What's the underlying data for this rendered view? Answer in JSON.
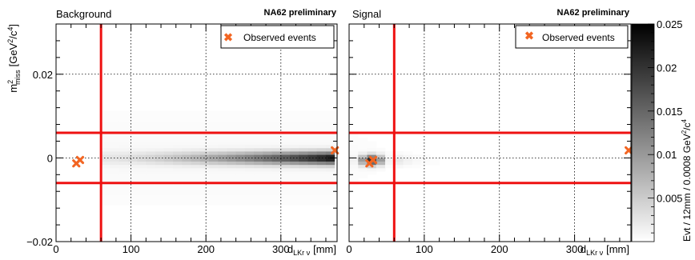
{
  "figure": {
    "panels": [
      "Background",
      "Signal"
    ],
    "preliminary_label": "NA62 preliminary"
  },
  "chart_data": [
    {
      "type": "heatmap",
      "title": "Background",
      "annotation": "NA62 preliminary",
      "xlabel": "d",
      "xlabel_sub": "LKr ν",
      "xlabel_unit": "[mm]",
      "ylabel": "m",
      "ylabel_sup": "2",
      "ylabel_sub": "miss",
      "ylabel_unit_pre": "[GeV",
      "ylabel_unit_sup1": "2",
      "ylabel_unit_mid": "/c",
      "ylabel_unit_sup2": "4",
      "ylabel_unit_post": "]",
      "xlim": [
        0,
        375
      ],
      "ylim": [
        -0.02,
        0.032
      ],
      "xticks": [
        0,
        100,
        200,
        300
      ],
      "xtick_labels": [
        "0",
        "100",
        "200",
        "300"
      ],
      "yticks": [
        -0.02,
        0,
        0.02
      ],
      "ytick_labels": [
        "−0.02",
        "0",
        "0.02"
      ],
      "grid": true,
      "legend": {
        "position": "top-right",
        "entries": [
          "Observed events"
        ]
      },
      "cut_lines": {
        "x": [
          60
        ],
        "y": [
          -0.006,
          0.006
        ]
      },
      "density": {
        "band_y_center": 0.0,
        "band_half_width": 0.0015,
        "x_start": 60,
        "x_end": 375,
        "peak_x": 375,
        "peak_value": 0.024
      },
      "observed_events": [
        {
          "x": 27,
          "y": -0.0013
        },
        {
          "x": 32,
          "y": -0.0005
        },
        {
          "x": 372,
          "y": 0.0018
        }
      ]
    },
    {
      "type": "heatmap",
      "title": "Signal",
      "annotation": "NA62 preliminary",
      "xlabel": "d",
      "xlabel_sub": "LKr ν",
      "xlabel_unit": "[mm]",
      "xlim": [
        0,
        375
      ],
      "ylim": [
        -0.02,
        0.032
      ],
      "xticks": [
        0,
        100,
        200,
        300
      ],
      "xtick_labels": [
        "0",
        "100",
        "200",
        "300"
      ],
      "yticks": [
        -0.02,
        0,
        0.02
      ],
      "grid": true,
      "legend": {
        "position": "top-right",
        "entries": [
          "Observed events"
        ]
      },
      "cut_lines": {
        "x": [
          60
        ],
        "y": [
          -0.006,
          0.006
        ]
      },
      "density": {
        "band_y_center": -0.0005,
        "band_half_width": 0.0012,
        "x_start": 0,
        "x_end": 60,
        "peak_x": 30,
        "peak_value": 0.02
      },
      "observed_events": [
        {
          "x": 27,
          "y": -0.0013
        },
        {
          "x": 32,
          "y": -0.0005
        },
        {
          "x": 372,
          "y": 0.0018
        }
      ]
    }
  ],
  "colorbar": {
    "label_pre": "Evt / 12mm / 0.0008 GeV",
    "label_sup1": "2",
    "label_mid": "/c",
    "label_sup2": "4",
    "range": [
      0,
      0.025
    ],
    "ticks": [
      0.005,
      0.01,
      0.015,
      0.02,
      0.025
    ],
    "tick_labels": [
      "0.005",
      "0.01",
      "0.015",
      "0.02",
      "0.025"
    ]
  },
  "colors": {
    "cut_line": "#ee1111",
    "marker": "#f26522",
    "grid": "#000000"
  }
}
